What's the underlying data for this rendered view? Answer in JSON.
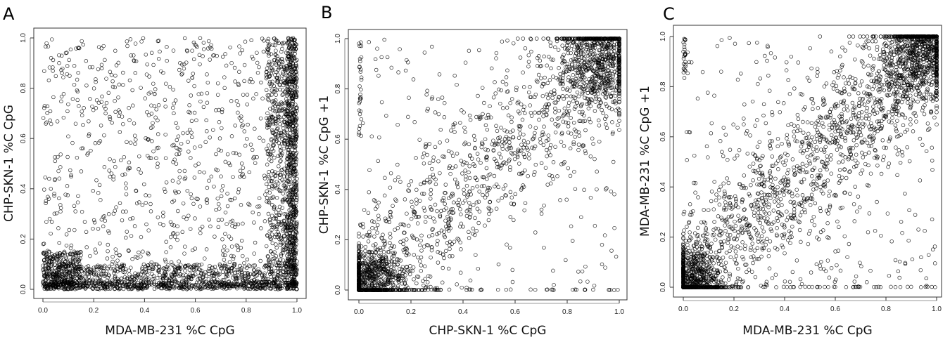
{
  "chart_data": [
    {
      "type": "scatter",
      "panel_label": "A",
      "xlabel": "MDA-MB-231 %C CpG",
      "ylabel": "CHP-SKN-1 %C CpG",
      "xlim": [
        0,
        1
      ],
      "ylim": [
        0,
        1
      ],
      "xticks": [
        "0.0",
        "0.2",
        "0.4",
        "0.6",
        "0.8",
        "1.0"
      ],
      "yticks": [
        "0.0",
        "0.2",
        "0.4",
        "0.6",
        "0.8",
        "1.0"
      ],
      "grid": false,
      "marker": "open-circle",
      "point_clusters": [
        {
          "kind": "uniform",
          "x": [
            0,
            1
          ],
          "y": [
            0,
            1
          ],
          "n": 900
        },
        {
          "kind": "uniform",
          "x": [
            0.88,
            1
          ],
          "y": [
            0,
            1
          ],
          "n": 600
        },
        {
          "kind": "uniform",
          "x": [
            0.96,
            1
          ],
          "y": [
            0,
            1
          ],
          "n": 500
        },
        {
          "kind": "uniform",
          "x": [
            0,
            1
          ],
          "y": [
            0,
            0.1
          ],
          "n": 700
        },
        {
          "kind": "uniform",
          "x": [
            0,
            1
          ],
          "y": [
            0,
            0.03
          ],
          "n": 400
        },
        {
          "kind": "uniform",
          "x": [
            0,
            0.15
          ],
          "y": [
            0,
            0.15
          ],
          "n": 300
        }
      ]
    },
    {
      "type": "scatter",
      "panel_label": "B",
      "xlabel": "CHP-SKN-1 %C CpG",
      "ylabel": "CHP-SKN-1 %C CpG +1",
      "xlim": [
        0,
        1
      ],
      "ylim": [
        0,
        1
      ],
      "xticks": [
        "0.0",
        "0.2",
        "0.4",
        "0.6",
        "0.8",
        "1.0"
      ],
      "yticks": [
        "0.0",
        "0.2",
        "0.4",
        "0.6",
        "0.8",
        "1.0"
      ],
      "grid": false,
      "marker": "open-circle",
      "point_clusters": [
        {
          "kind": "gauss",
          "mx": 0.04,
          "my": 0.04,
          "sx": 0.07,
          "sy": 0.07,
          "n": 700
        },
        {
          "kind": "gauss",
          "mx": 0.93,
          "my": 0.92,
          "sx": 0.08,
          "sy": 0.1,
          "n": 700
        },
        {
          "kind": "diag",
          "x": [
            0,
            1
          ],
          "sd": 0.16,
          "n": 900
        },
        {
          "kind": "uniform",
          "x": [
            0,
            1
          ],
          "y": [
            0,
            1
          ],
          "n": 250
        },
        {
          "kind": "uniform",
          "x": [
            0.2,
            1
          ],
          "y": [
            0,
            0.002
          ],
          "n": 40
        },
        {
          "kind": "uniform",
          "x": [
            0,
            0.01
          ],
          "y": [
            0.6,
            1
          ],
          "n": 30
        }
      ]
    },
    {
      "type": "scatter",
      "panel_label": "C",
      "xlabel": "MDA-MB-231 %C CpG",
      "ylabel": "MDA-MB-231 %C CpG +1",
      "xlim": [
        0,
        1
      ],
      "ylim": [
        0,
        1
      ],
      "xticks": [
        "0.0",
        "0.2",
        "0.4",
        "0.6",
        "0.8",
        "1.0"
      ],
      "yticks": [
        "0.0",
        "0.2",
        "0.4",
        "0.6",
        "0.8",
        "1.0"
      ],
      "grid": false,
      "marker": "open-circle",
      "point_clusters": [
        {
          "kind": "gauss",
          "mx": 0.03,
          "my": 0.03,
          "sx": 0.07,
          "sy": 0.07,
          "n": 700
        },
        {
          "kind": "gauss",
          "mx": 0.94,
          "my": 0.94,
          "sx": 0.08,
          "sy": 0.1,
          "n": 800
        },
        {
          "kind": "diag",
          "x": [
            0,
            1
          ],
          "sd": 0.14,
          "n": 1200
        },
        {
          "kind": "uniform",
          "x": [
            0,
            1
          ],
          "y": [
            0,
            1
          ],
          "n": 350
        },
        {
          "kind": "uniform",
          "x": [
            0.3,
            1
          ],
          "y": [
            0,
            0.002
          ],
          "n": 40
        },
        {
          "kind": "uniform",
          "x": [
            0,
            0.01
          ],
          "y": [
            0.85,
            1
          ],
          "n": 25
        }
      ]
    }
  ]
}
